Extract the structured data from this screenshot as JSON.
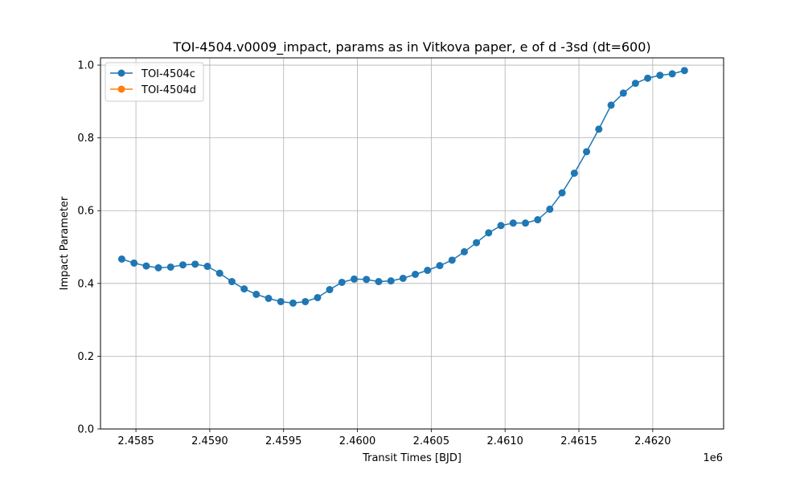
{
  "chart_data": {
    "type": "line",
    "title": "TOI-4504.v0009_impact, params as in Vitkova paper, e of d -3sd (dt=600)",
    "xlabel": "Transit Times [BJD]",
    "ylabel": "Impact Parameter",
    "x_offset_label": "1e6",
    "xlim": [
      2458260,
      2462480
    ],
    "ylim": [
      0.0,
      1.02
    ],
    "x_ticks": [
      2458500,
      2459000,
      2459500,
      2460000,
      2460500,
      2461000,
      2461500,
      2462000
    ],
    "x_tick_labels": [
      "2.4585",
      "2.4590",
      "2.4595",
      "2.4600",
      "2.4605",
      "2.4610",
      "2.4615",
      "2.4620"
    ],
    "y_ticks": [
      0.0,
      0.2,
      0.4,
      0.6,
      0.8,
      1.0
    ],
    "y_tick_labels": [
      "0.0",
      "0.2",
      "0.4",
      "0.6",
      "0.8",
      "1.0"
    ],
    "grid": true,
    "legend_position": "top-left",
    "series": [
      {
        "name": "TOI-4504c",
        "color": "#1f77b4",
        "marker": "circle",
        "x": [
          2458404,
          2458487,
          2458570,
          2458652,
          2458735,
          2458818,
          2458901,
          2458984,
          2459067,
          2459150,
          2459233,
          2459315,
          2459398,
          2459481,
          2459564,
          2459647,
          2459730,
          2459812,
          2459895,
          2459978,
          2460061,
          2460144,
          2460227,
          2460309,
          2460392,
          2460475,
          2460558,
          2460641,
          2460724,
          2460806,
          2460889,
          2460972,
          2461055,
          2461138,
          2461221,
          2461303,
          2461386,
          2461469,
          2461552,
          2461635,
          2461718,
          2461801,
          2461883,
          2461966,
          2462049,
          2462132,
          2462215
        ],
        "y": [
          0.467,
          0.456,
          0.448,
          0.443,
          0.445,
          0.451,
          0.453,
          0.447,
          0.428,
          0.405,
          0.385,
          0.37,
          0.359,
          0.35,
          0.346,
          0.35,
          0.361,
          0.383,
          0.403,
          0.412,
          0.411,
          0.405,
          0.407,
          0.414,
          0.425,
          0.436,
          0.449,
          0.464,
          0.487,
          0.512,
          0.539,
          0.559,
          0.566,
          0.566,
          0.575,
          0.604,
          0.649,
          0.703,
          0.762,
          0.824,
          0.89,
          0.923,
          0.95,
          0.964,
          0.972,
          0.976,
          0.985
        ]
      },
      {
        "name": "TOI-4504d",
        "color": "#ff7f0e",
        "marker": "circle",
        "x": [],
        "y": []
      }
    ]
  }
}
